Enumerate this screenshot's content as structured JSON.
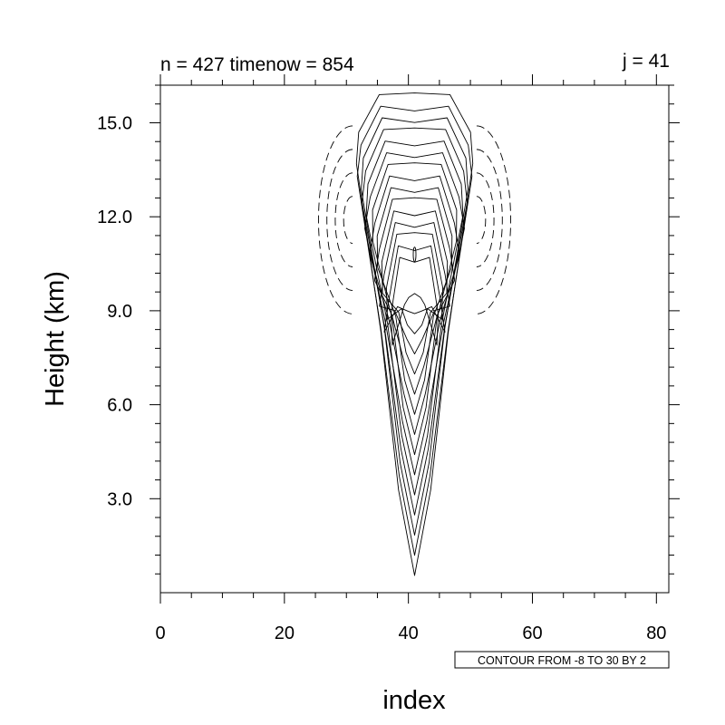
{
  "chart_data": {
    "type": "contour",
    "title_left": "n = 427 timenow = 854",
    "title_right": "j = 41",
    "xlabel": "index",
    "ylabel": "Height (km)",
    "xlim": [
      0,
      82
    ],
    "ylim": [
      0,
      16.2
    ],
    "x_ticks": [
      0,
      20,
      40,
      60,
      80
    ],
    "x_tick_labels": [
      "0",
      "20",
      "40",
      "60",
      "80"
    ],
    "y_ticks": [
      3,
      6,
      9,
      12,
      15
    ],
    "y_tick_labels": [
      "3.0",
      "6.0",
      "9.0",
      "12.0",
      "15.0"
    ],
    "contour_info": "CONTOUR FROM -8 TO 30 BY 2",
    "contour_min": -8,
    "contour_max": 30,
    "contour_interval": 2,
    "negative_lines": "dashed",
    "positive_lines": "solid",
    "grid": false
  }
}
